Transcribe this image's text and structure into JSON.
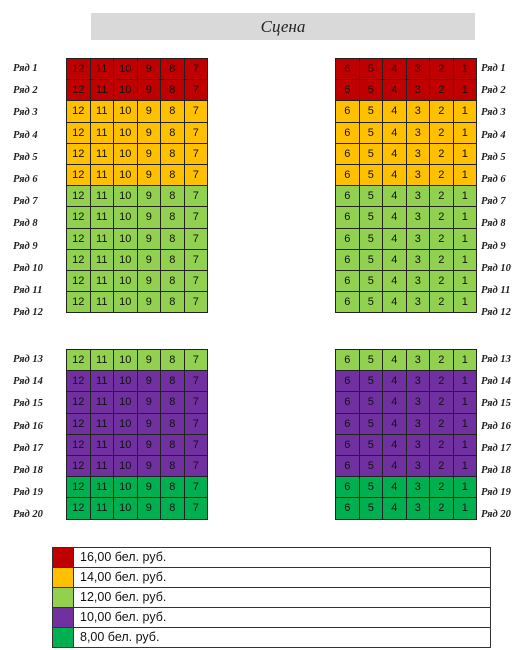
{
  "stage": {
    "label": "Сцена"
  },
  "row_prefix": "Ряд",
  "price_colors": {
    "red": "#c00000",
    "orange": "#ffc000",
    "lightgreen": "#92d050",
    "purple": "#7030a0",
    "green": "#00b050"
  },
  "sections": [
    {
      "id": "front",
      "rows": [
        1,
        2,
        3,
        4,
        5,
        6,
        7,
        8,
        9,
        10,
        11,
        12
      ],
      "row_price": [
        "red",
        "red",
        "orange",
        "orange",
        "orange",
        "orange",
        "lightgreen",
        "lightgreen",
        "lightgreen",
        "lightgreen",
        "lightgreen",
        "lightgreen"
      ],
      "left_seats": [
        12,
        11,
        10,
        9,
        8,
        7
      ],
      "right_seats": [
        6,
        5,
        4,
        3,
        2,
        1
      ]
    },
    {
      "id": "rear",
      "rows": [
        13,
        14,
        15,
        16,
        17,
        18,
        19,
        20
      ],
      "row_price": [
        "lightgreen",
        "purple",
        "purple",
        "purple",
        "purple",
        "purple",
        "green",
        "green"
      ],
      "left_seats": [
        12,
        11,
        10,
        9,
        8,
        7
      ],
      "right_seats": [
        6,
        5,
        4,
        3,
        2,
        1
      ]
    }
  ],
  "legend": [
    {
      "color": "red",
      "label": "16,00 бел. руб."
    },
    {
      "color": "orange",
      "label": "14,00 бел. руб."
    },
    {
      "color": "lightgreen",
      "label": "12,00 бел. руб."
    },
    {
      "color": "purple",
      "label": "10,00 бел. руб."
    },
    {
      "color": "green",
      "label": "8,00 бел. руб."
    }
  ]
}
